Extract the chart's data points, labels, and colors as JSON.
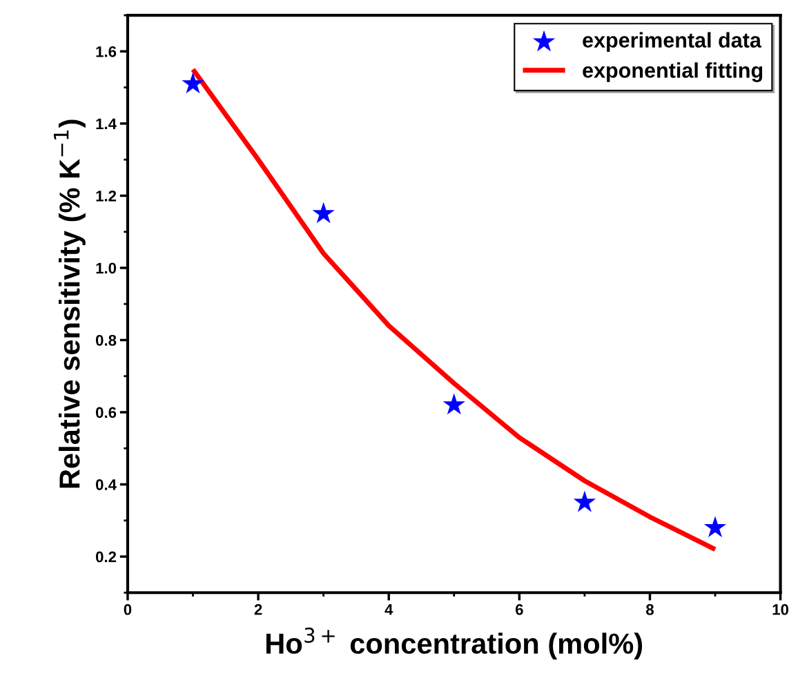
{
  "chart_data": {
    "type": "scatter",
    "xlabel": "Ho$^{3+}$ concentration (mol%)",
    "ylabel": "Relative sensitivity (% K$^{−1}$)",
    "xlim": [
      0,
      10
    ],
    "xticks": [
      0,
      2,
      4,
      6,
      8,
      10
    ],
    "ylim": [
      0.1,
      1.7
    ],
    "yticks": [
      0.2,
      0.4,
      0.6,
      0.8,
      {
        "value": 1.0,
        "label": "1.0"
      },
      1.2,
      1.4,
      1.6
    ],
    "grid": false,
    "legend": "top right",
    "series": [
      {
        "name": "experimental data",
        "marker": "star",
        "color": "#0000ff",
        "x": [
          1,
          3,
          5,
          7,
          9
        ],
        "values": [
          1.51,
          1.15,
          0.62,
          0.35,
          0.28
        ]
      },
      {
        "name": "exponential fitting",
        "type": "line",
        "marker": "none",
        "line_style": "solid",
        "color": "#ff0000",
        "x": [
          1,
          2,
          3,
          4,
          5,
          6,
          7,
          8,
          9
        ],
        "values": [
          1.55,
          1.3,
          1.04,
          0.84,
          0.68,
          0.53,
          0.41,
          0.31,
          0.22
        ]
      }
    ]
  }
}
